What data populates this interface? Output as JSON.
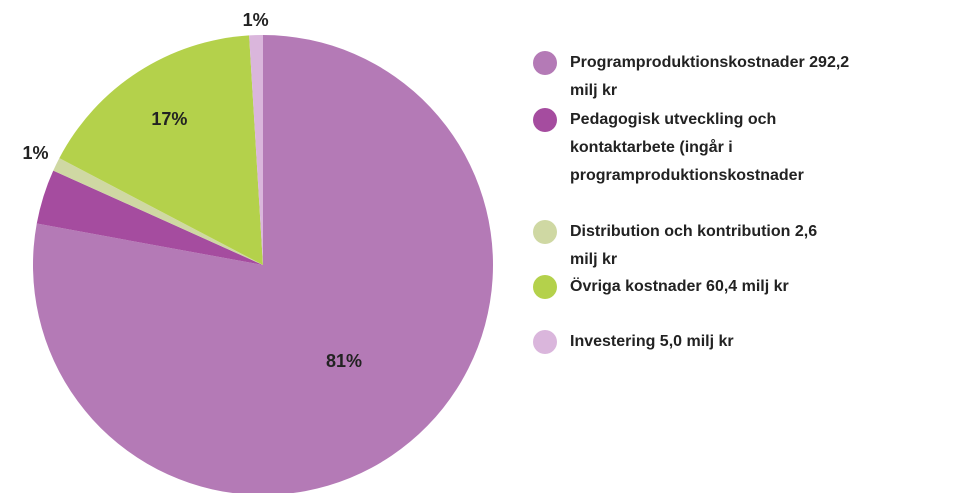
{
  "chart_data": {
    "type": "pie",
    "categories": [
      "Programproduktionskostnader 292,2 milj kr",
      "Pedagogisk utveckling och kontaktarbete (ingår i programproduktionskostnader",
      "Distribution och kontribution 2,6 milj kr",
      "Övriga kostnader 60,4 milj kr",
      "Investering 5,0 milj kr"
    ],
    "values": [
      81,
      4,
      1,
      17,
      1
    ],
    "value_labels": [
      "81%",
      null,
      "1%",
      "17%",
      "1%"
    ],
    "colors": [
      "#b47ab6",
      "#a54c9f",
      "#cfd8a3",
      "#b4d14b",
      "#dab6dc"
    ],
    "legend": "right"
  }
}
